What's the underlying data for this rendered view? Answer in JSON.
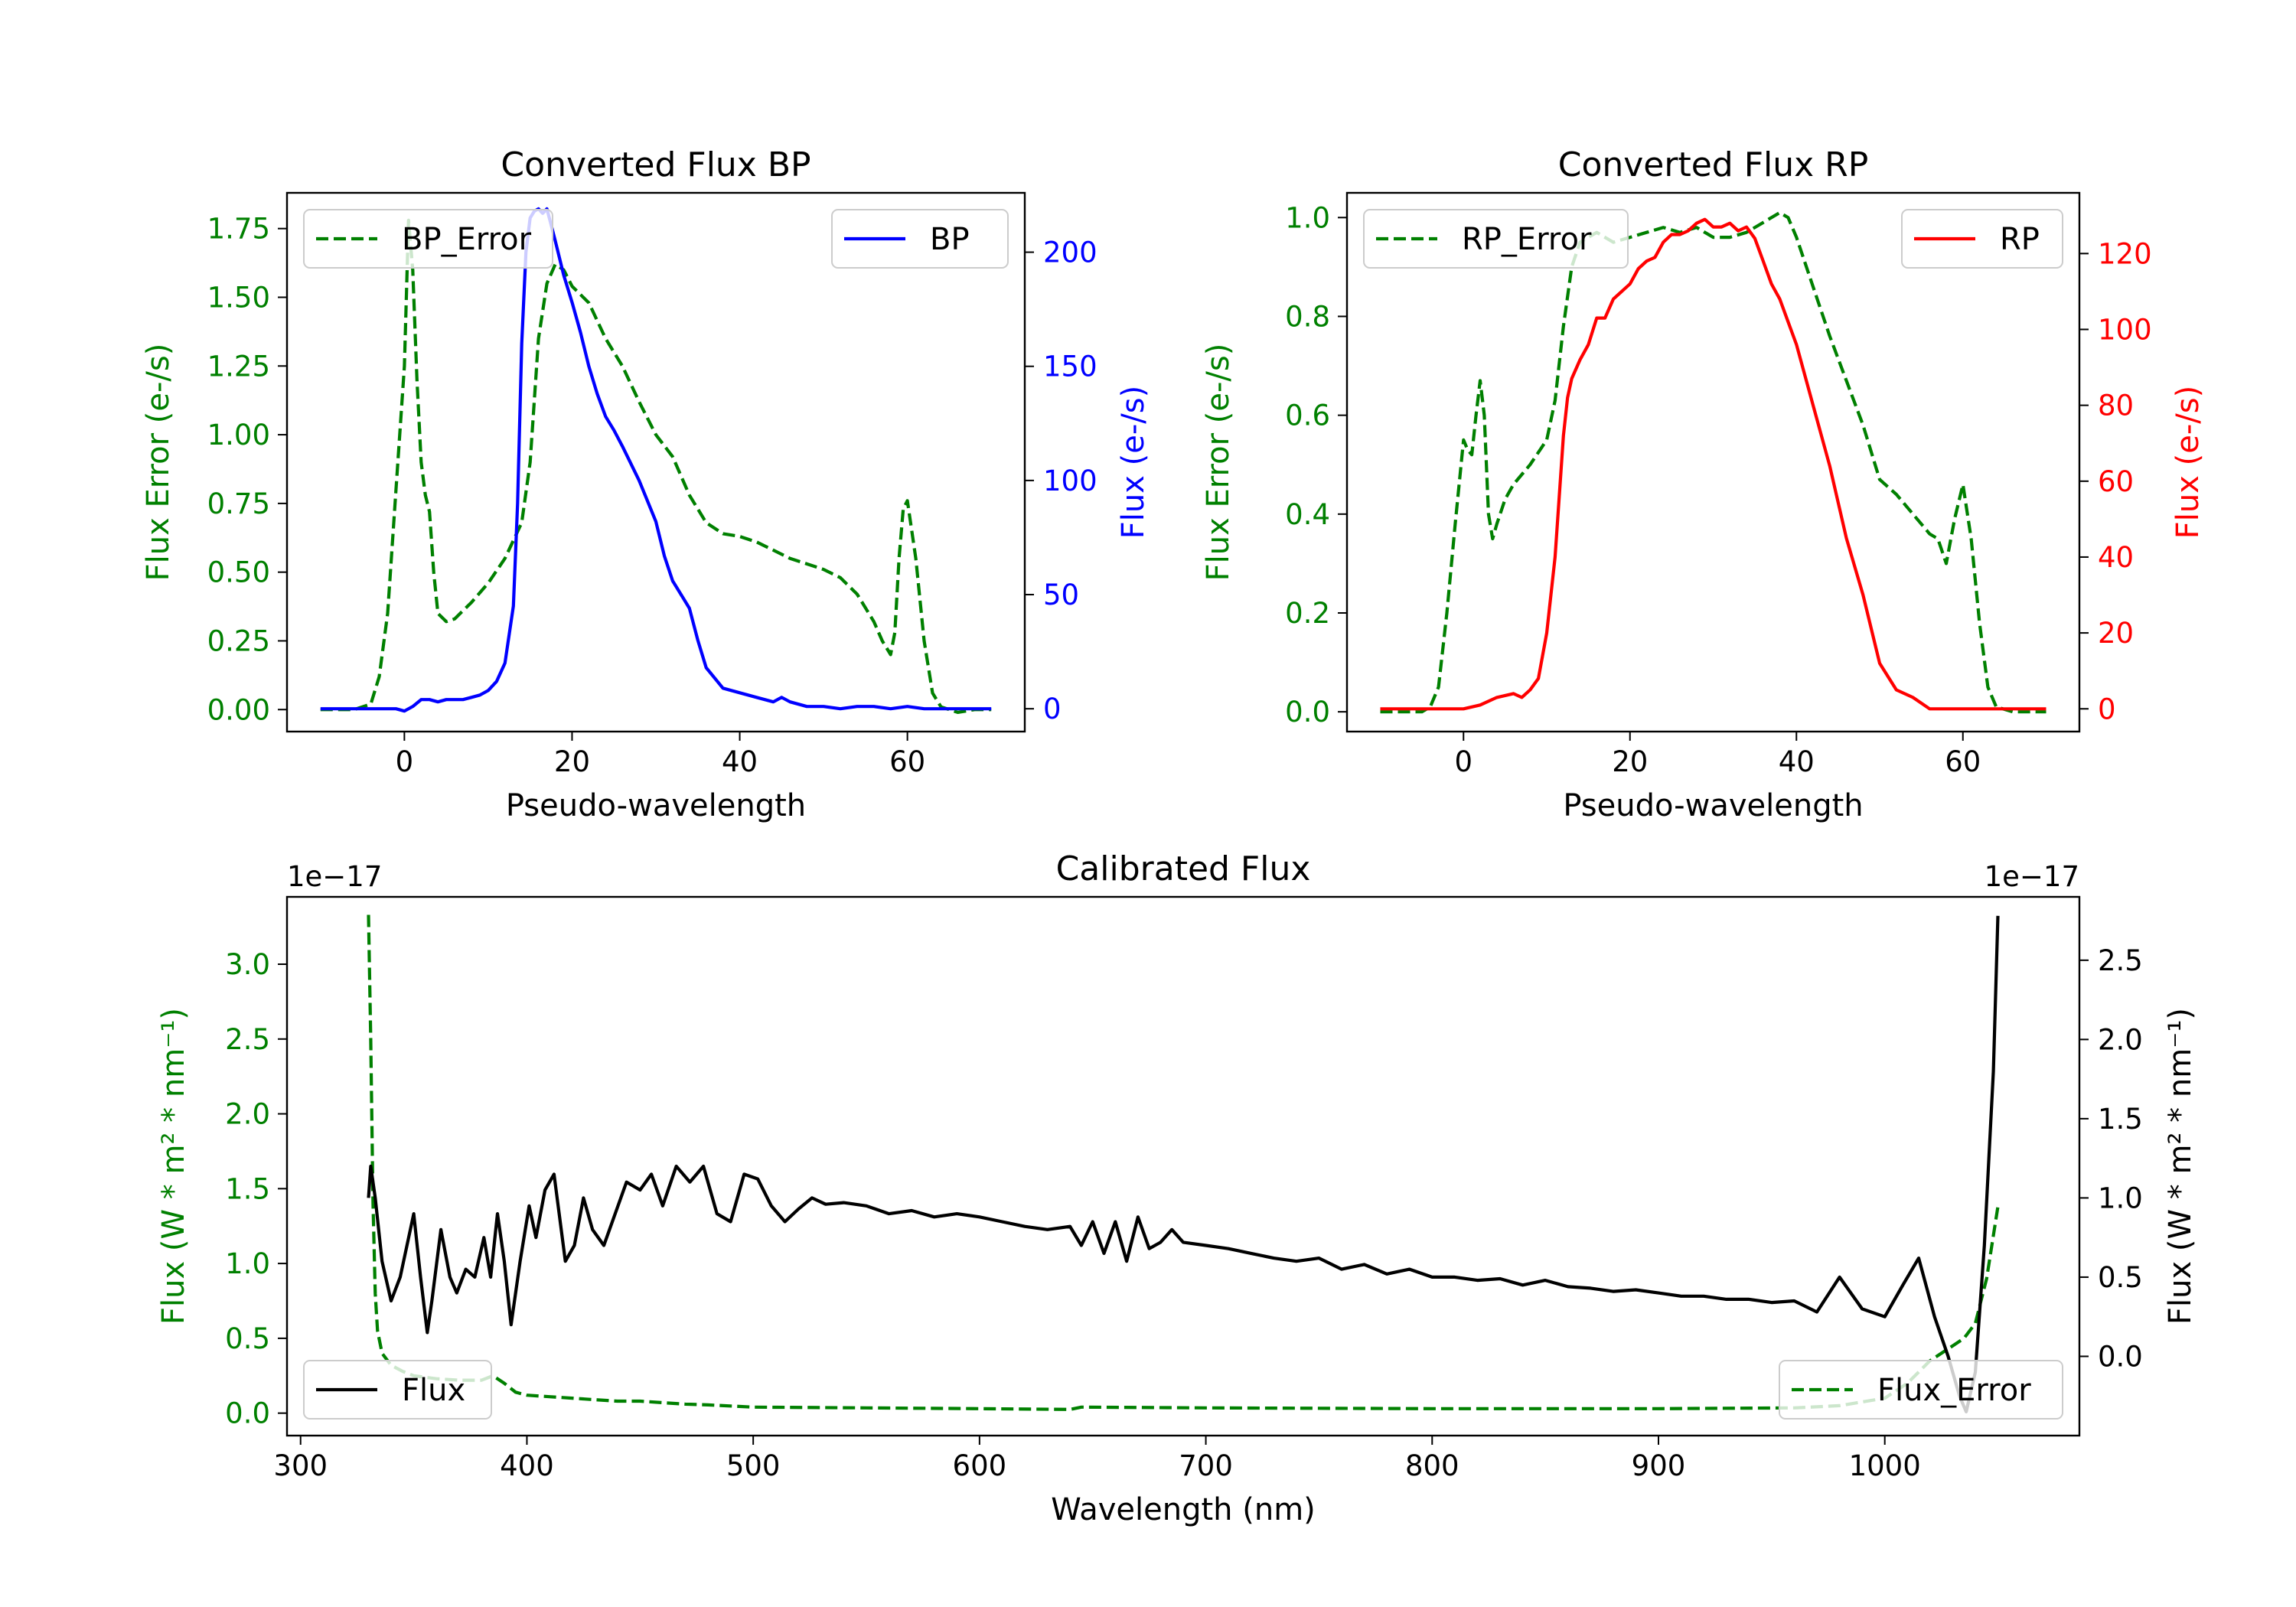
{
  "figure": {
    "background": "#ffffff"
  },
  "chart_data": [
    {
      "id": "bp",
      "type": "line",
      "title": "Converted Flux BP",
      "xlabel": "Pseudo-wavelength",
      "ylabel_left": "Flux Error (e-/s)",
      "ylabel_right": "Flux (e-/s)",
      "xlim": [
        -14,
        74
      ],
      "xticks": [
        0,
        20,
        40,
        60
      ],
      "xtick_labels": [
        "0",
        "20",
        "40",
        "60"
      ],
      "ylim_left": [
        -0.08,
        1.88
      ],
      "yticks_left": [
        0.0,
        0.25,
        0.5,
        0.75,
        1.0,
        1.25,
        1.5,
        1.75
      ],
      "ytick_labels_left": [
        "0.00",
        "0.25",
        "0.50",
        "0.75",
        "1.00",
        "1.25",
        "1.50",
        "1.75"
      ],
      "ylim_right": [
        -10,
        226
      ],
      "yticks_right": [
        0,
        50,
        100,
        150,
        200
      ],
      "ytick_labels_right": [
        "0",
        "50",
        "100",
        "150",
        "200"
      ],
      "left_color": "#008000",
      "right_color": "#0000ff",
      "legend_left": {
        "label": "BP_Error",
        "position": "upper-left"
      },
      "legend_right": {
        "label": "BP",
        "position": "upper-right"
      },
      "series": [
        {
          "name": "BP_Error",
          "axis": "left",
          "color": "#008000",
          "style": "dashed",
          "x": [
            -10,
            -6,
            -4,
            -3,
            -2,
            -1,
            0,
            0.5,
            1,
            1.5,
            2,
            2.5,
            3,
            3.5,
            4,
            5,
            6,
            7,
            8,
            10,
            12,
            14,
            15,
            16,
            17,
            18,
            19,
            20,
            22,
            24,
            26,
            28,
            30,
            32,
            34,
            36,
            38,
            40,
            42,
            44,
            46,
            48,
            50,
            52,
            54,
            56,
            57,
            58,
            58.5,
            59,
            59.5,
            60,
            61,
            62,
            63,
            64,
            66,
            68,
            70
          ],
          "values": [
            0.0,
            0.0,
            0.02,
            0.12,
            0.35,
            0.8,
            1.25,
            1.78,
            1.6,
            1.2,
            0.9,
            0.78,
            0.72,
            0.5,
            0.35,
            0.32,
            0.33,
            0.36,
            0.39,
            0.46,
            0.55,
            0.68,
            0.9,
            1.35,
            1.55,
            1.62,
            1.6,
            1.54,
            1.48,
            1.35,
            1.25,
            1.12,
            1.0,
            0.92,
            0.78,
            0.68,
            0.64,
            0.63,
            0.61,
            0.58,
            0.55,
            0.53,
            0.51,
            0.48,
            0.42,
            0.32,
            0.25,
            0.2,
            0.28,
            0.55,
            0.73,
            0.76,
            0.55,
            0.25,
            0.06,
            0.01,
            -0.01,
            0.0,
            0.0
          ]
        },
        {
          "name": "BP",
          "axis": "right",
          "color": "#0000ff",
          "style": "solid",
          "x": [
            -10,
            -4,
            -1,
            0,
            1,
            2,
            3,
            4,
            5,
            6,
            7,
            8,
            9,
            10,
            11,
            12,
            13,
            13.5,
            14,
            14.5,
            15,
            15.5,
            16,
            16.5,
            17,
            17.5,
            18,
            19,
            20,
            21,
            22,
            23,
            24,
            25,
            26,
            28,
            30,
            31,
            32,
            33,
            34,
            35,
            36,
            38,
            40,
            42,
            44,
            45,
            46,
            48,
            50,
            52,
            54,
            56,
            58,
            60,
            62,
            64,
            66,
            68,
            70
          ],
          "values": [
            0,
            0,
            0,
            -1,
            1,
            4,
            4,
            3,
            4,
            4,
            4,
            5,
            6,
            8,
            12,
            20,
            45,
            90,
            160,
            200,
            215,
            218,
            219,
            217,
            219,
            212,
            205,
            190,
            178,
            165,
            150,
            138,
            128,
            122,
            115,
            100,
            82,
            67,
            56,
            50,
            44,
            30,
            18,
            9,
            7,
            5,
            3,
            5,
            3,
            1,
            1,
            0,
            1,
            1,
            0,
            1,
            0,
            0,
            0,
            0,
            0
          ]
        }
      ]
    },
    {
      "id": "rp",
      "type": "line",
      "title": "Converted Flux RP",
      "xlabel": "Pseudo-wavelength",
      "ylabel_left": "Flux Error (e-/s)",
      "ylabel_right": "Flux (e-/s)",
      "xlim": [
        -14,
        74
      ],
      "xticks": [
        0,
        20,
        40,
        60
      ],
      "xtick_labels": [
        "0",
        "20",
        "40",
        "60"
      ],
      "ylim_left": [
        -0.04,
        1.05
      ],
      "yticks_left": [
        0.0,
        0.2,
        0.4,
        0.6,
        0.8,
        1.0
      ],
      "ytick_labels_left": [
        "0.0",
        "0.2",
        "0.4",
        "0.6",
        "0.8",
        "1.0"
      ],
      "ylim_right": [
        -6,
        136
      ],
      "yticks_right": [
        0,
        20,
        40,
        60,
        80,
        100,
        120
      ],
      "ytick_labels_right": [
        "0",
        "20",
        "40",
        "60",
        "80",
        "100",
        "120"
      ],
      "left_color": "#008000",
      "right_color": "#ff0000",
      "legend_left": {
        "label": "RP_Error",
        "position": "upper-left"
      },
      "legend_right": {
        "label": "RP",
        "position": "upper-right"
      },
      "series": [
        {
          "name": "RP_Error",
          "axis": "left",
          "color": "#008000",
          "style": "dashed",
          "x": [
            -10,
            -5,
            -4,
            -3,
            -2,
            -1,
            0,
            0.5,
            1,
            1.5,
            2,
            2.5,
            3,
            3.5,
            4,
            5,
            6,
            8,
            10,
            11,
            12,
            13,
            14,
            16,
            18,
            20,
            22,
            24,
            26,
            28,
            30,
            32,
            34,
            36,
            37,
            38,
            39,
            40,
            42,
            44,
            46,
            48,
            50,
            52,
            54,
            55,
            56,
            57,
            58,
            59,
            60,
            61,
            62,
            63,
            64,
            66,
            68,
            70
          ],
          "values": [
            0.0,
            0.0,
            0.01,
            0.05,
            0.2,
            0.38,
            0.55,
            0.53,
            0.52,
            0.6,
            0.67,
            0.6,
            0.4,
            0.35,
            0.38,
            0.43,
            0.46,
            0.5,
            0.55,
            0.63,
            0.78,
            0.9,
            0.95,
            0.97,
            0.95,
            0.96,
            0.97,
            0.98,
            0.97,
            0.98,
            0.96,
            0.96,
            0.97,
            0.99,
            1.0,
            1.01,
            1.0,
            0.96,
            0.86,
            0.76,
            0.67,
            0.58,
            0.47,
            0.44,
            0.4,
            0.38,
            0.36,
            0.35,
            0.3,
            0.39,
            0.46,
            0.35,
            0.18,
            0.05,
            0.01,
            0.0,
            0.0,
            0.0
          ]
        },
        {
          "name": "RP",
          "axis": "right",
          "color": "#ff0000",
          "style": "solid",
          "x": [
            -10,
            -4,
            -2,
            0,
            2,
            4,
            6,
            7,
            8,
            9,
            10,
            11,
            12,
            12.5,
            13,
            14,
            15,
            16,
            17,
            18,
            19,
            20,
            21,
            22,
            23,
            24,
            25,
            26,
            27,
            28,
            29,
            30,
            31,
            32,
            33,
            34,
            35,
            36,
            37,
            38,
            39,
            40,
            42,
            44,
            46,
            48,
            50,
            52,
            54,
            56,
            58,
            60,
            62,
            64,
            66,
            68,
            70
          ],
          "values": [
            0,
            0,
            0,
            0,
            1,
            3,
            4,
            3,
            5,
            8,
            20,
            40,
            72,
            82,
            87,
            92,
            96,
            103,
            103,
            108,
            110,
            112,
            116,
            118,
            119,
            123,
            125,
            125,
            126,
            128,
            129,
            127,
            127,
            128,
            126,
            127,
            124,
            118,
            112,
            108,
            102,
            96,
            80,
            64,
            45,
            30,
            12,
            5,
            3,
            0,
            0,
            0,
            0,
            0,
            0,
            0,
            0
          ]
        }
      ]
    },
    {
      "id": "calibrated",
      "type": "line",
      "title": "Calibrated Flux",
      "xlabel": "Wavelength (nm)",
      "ylabel_left": "Flux (W * m² * nm⁻¹)",
      "ylabel_right": "Flux (W * m² * nm⁻¹)",
      "offset_left": "1e−17",
      "offset_right": "1e−17",
      "xlim": [
        294,
        1086
      ],
      "xticks": [
        300,
        400,
        500,
        600,
        700,
        800,
        900,
        1000
      ],
      "xtick_labels": [
        "300",
        "400",
        "500",
        "600",
        "700",
        "800",
        "900",
        "1000"
      ],
      "ylim_left": [
        -0.15,
        3.45
      ],
      "yticks_left": [
        0.0,
        0.5,
        1.0,
        1.5,
        2.0,
        2.5,
        3.0
      ],
      "ytick_labels_left": [
        "0.0",
        "0.5",
        "1.0",
        "1.5",
        "2.0",
        "2.5",
        "3.0"
      ],
      "ylim_right": [
        -0.5,
        2.9
      ],
      "yticks_right": [
        0.0,
        0.5,
        1.0,
        1.5,
        2.0,
        2.5
      ],
      "ytick_labels_right": [
        "0.0",
        "0.5",
        "1.0",
        "1.5",
        "2.0",
        "2.5"
      ],
      "left_color": "#008000",
      "right_color": "#000000",
      "legend_left": {
        "label": "Flux",
        "position": "lower-left"
      },
      "legend_right": {
        "label": "Flux_Error",
        "position": "lower-right"
      },
      "series": [
        {
          "name": "Flux_Error",
          "axis": "left",
          "color": "#008000",
          "style": "dashed",
          "x": [
            330,
            331,
            332,
            333,
            334,
            336,
            340,
            345,
            350,
            360,
            370,
            380,
            385,
            390,
            395,
            400,
            410,
            420,
            430,
            440,
            450,
            460,
            470,
            480,
            500,
            550,
            600,
            640,
            645,
            700,
            800,
            900,
            960,
            980,
            1000,
            1010,
            1020,
            1030,
            1035,
            1040,
            1045,
            1050
          ],
          "values": [
            3.33,
            2.5,
            1.4,
            0.8,
            0.55,
            0.4,
            0.32,
            0.28,
            0.25,
            0.23,
            0.22,
            0.22,
            0.25,
            0.2,
            0.14,
            0.12,
            0.11,
            0.1,
            0.09,
            0.08,
            0.08,
            0.07,
            0.06,
            0.055,
            0.04,
            0.035,
            0.03,
            0.025,
            0.04,
            0.035,
            0.03,
            0.03,
            0.035,
            0.05,
            0.1,
            0.2,
            0.35,
            0.45,
            0.5,
            0.6,
            0.9,
            1.38
          ]
        },
        {
          "name": "Flux",
          "axis": "right",
          "color": "#000000",
          "style": "solid",
          "x": [
            330,
            331,
            333,
            336,
            340,
            344,
            350,
            353,
            356,
            358,
            362,
            366,
            369,
            373,
            377,
            381,
            384,
            387,
            390,
            393,
            397,
            401,
            404,
            408,
            412,
            417,
            421,
            425,
            429,
            434,
            439,
            444,
            450,
            455,
            460,
            466,
            472,
            478,
            484,
            490,
            496,
            502,
            508,
            514,
            520,
            526,
            532,
            540,
            550,
            560,
            570,
            580,
            590,
            600,
            610,
            620,
            630,
            640,
            645,
            650,
            655,
            660,
            665,
            670,
            675,
            680,
            685,
            690,
            700,
            710,
            720,
            730,
            740,
            750,
            760,
            770,
            780,
            790,
            800,
            810,
            820,
            830,
            840,
            850,
            860,
            870,
            880,
            890,
            900,
            910,
            920,
            930,
            940,
            950,
            960,
            970,
            980,
            990,
            1000,
            1008,
            1015,
            1022,
            1028,
            1033,
            1036,
            1040,
            1044,
            1048,
            1050
          ],
          "values": [
            1.0,
            1.2,
            1.0,
            0.6,
            0.35,
            0.5,
            0.9,
            0.5,
            0.15,
            0.35,
            0.8,
            0.5,
            0.4,
            0.55,
            0.5,
            0.75,
            0.5,
            0.9,
            0.6,
            0.2,
            0.6,
            0.95,
            0.75,
            1.05,
            1.15,
            0.6,
            0.7,
            1.0,
            0.8,
            0.7,
            0.9,
            1.1,
            1.05,
            1.15,
            0.95,
            1.2,
            1.1,
            1.2,
            0.9,
            0.85,
            1.15,
            1.12,
            0.95,
            0.85,
            0.93,
            1.0,
            0.96,
            0.97,
            0.95,
            0.9,
            0.92,
            0.88,
            0.9,
            0.88,
            0.85,
            0.82,
            0.8,
            0.82,
            0.7,
            0.85,
            0.65,
            0.85,
            0.6,
            0.88,
            0.68,
            0.72,
            0.8,
            0.72,
            0.7,
            0.68,
            0.65,
            0.62,
            0.6,
            0.62,
            0.55,
            0.58,
            0.52,
            0.55,
            0.5,
            0.5,
            0.48,
            0.49,
            0.45,
            0.48,
            0.44,
            0.43,
            0.41,
            0.42,
            0.4,
            0.38,
            0.38,
            0.36,
            0.36,
            0.34,
            0.35,
            0.28,
            0.5,
            0.3,
            0.25,
            0.45,
            0.62,
            0.25,
            0.0,
            -0.25,
            -0.35,
            -0.1,
            0.7,
            1.8,
            2.78
          ]
        }
      ]
    }
  ]
}
